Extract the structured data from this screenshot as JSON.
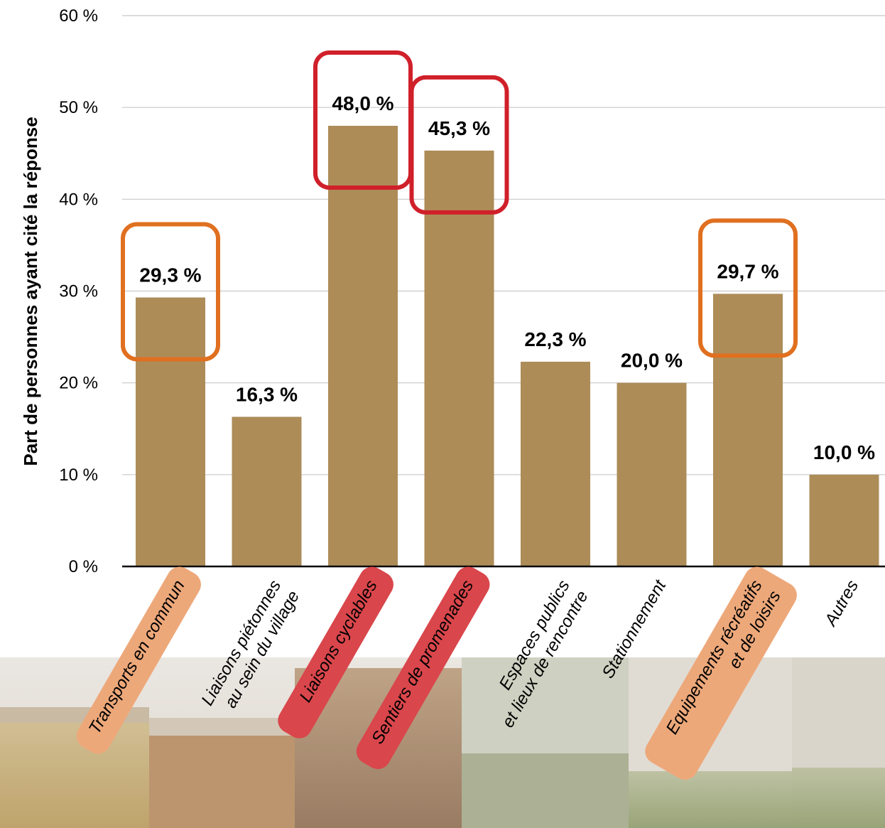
{
  "chart_data": {
    "type": "bar",
    "ylabel": "Part de personnes ayant cité la réponse",
    "ylim": [
      0,
      60
    ],
    "yticks": [
      "0 %",
      "10 %",
      "20 %",
      "30 %",
      "40 %",
      "50 %",
      "60 %"
    ],
    "grid": true,
    "categories": [
      [
        "Transports en commun"
      ],
      [
        "Liaisons piétonnes",
        "au sein du village"
      ],
      [
        "Liaisons cyclables"
      ],
      [
        "Sentiers de promenades"
      ],
      [
        "Espaces publics",
        "et lieux de rencontre"
      ],
      [
        "Stationnement"
      ],
      [
        "Equipements récréatifs",
        "et de loisirs"
      ],
      [
        "Autres"
      ]
    ],
    "values": [
      29.3,
      16.3,
      48.0,
      45.3,
      22.3,
      20.0,
      29.7,
      10.0
    ],
    "value_labels": [
      "29,3 %",
      "16,3 %",
      "48,0 %",
      "45,3 %",
      "22,3 %",
      "20,0 %",
      "29,7 %",
      "10,0 %"
    ],
    "highlights": [
      "orange",
      "none",
      "red",
      "red",
      "none",
      "none",
      "orange",
      "none"
    ]
  },
  "colors": {
    "bar": "#ad8c58",
    "highlight_red": "#d0202a",
    "highlight_orange": "#e07020",
    "label_red_bg": "#d9464b",
    "label_orange_bg": "#eda87a",
    "grid": "#c8c8c8"
  }
}
